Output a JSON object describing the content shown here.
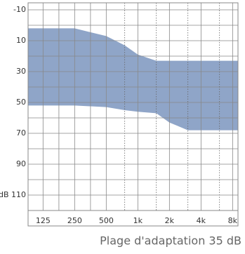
{
  "chart_data": {
    "type": "range-area",
    "caption": "Plage d'adaptation 35 dB",
    "x": [
      90,
      250,
      500,
      750,
      1000,
      1500,
      2000,
      3000,
      9000
    ],
    "low": [
      2,
      2,
      7,
      13,
      19,
      23,
      23,
      23,
      23
    ],
    "high": [
      52,
      52,
      53,
      55,
      56,
      57,
      63,
      68,
      68
    ],
    "color": "#8fa5c8",
    "xscale": "log",
    "xlim": [
      90,
      9000
    ],
    "xticks": [
      125,
      250,
      500,
      {
        "value": 1000,
        "label": "1k"
      },
      {
        "value": 2000,
        "label": "2k"
      },
      {
        "value": 4000,
        "label": "4k"
      },
      {
        "value": 8000,
        "label": "8k"
      }
    ],
    "minor_xgrid": [
      177,
      354
    ],
    "dotted_xgrid": [
      750,
      1500,
      3000,
      6000
    ],
    "ylim": [
      120,
      -10
    ],
    "yticks": [
      -10,
      10,
      30,
      50,
      70,
      90,
      {
        "value": 110,
        "label": "dB 110"
      }
    ],
    "minor_yticks": [
      0,
      20,
      40,
      60,
      80,
      100
    ],
    "grid": true
  }
}
